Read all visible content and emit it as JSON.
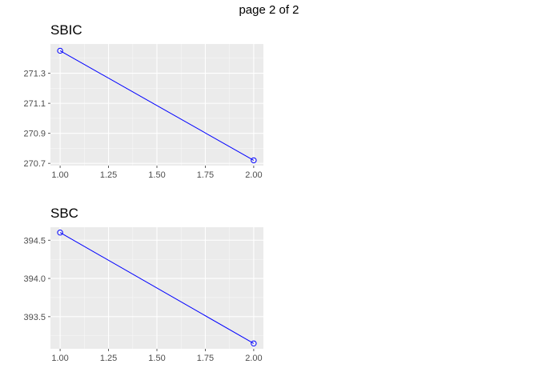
{
  "page_label": "page 2 of 2",
  "colors": {
    "panel_background": "#ebebeb",
    "grid_major": "#ffffff",
    "series_line": "#0000ff",
    "tick_text": "#4d4d4d"
  },
  "chart_data": [
    {
      "type": "line",
      "title": "SBIC",
      "xlabel": "",
      "ylabel": "",
      "x": [
        1,
        2
      ],
      "series": [
        {
          "values": [
            271.45,
            270.72
          ],
          "marker": "open-circle"
        }
      ],
      "xlim": [
        0.95,
        2.05
      ],
      "ylim": [
        270.685,
        271.495
      ],
      "x_ticks": [
        1.0,
        1.25,
        1.5,
        1.75,
        2.0
      ],
      "x_tick_labels": [
        "1.00",
        "1.25",
        "1.50",
        "1.75",
        "2.00"
      ],
      "y_ticks": [
        270.7,
        270.9,
        271.1,
        271.3
      ],
      "y_tick_labels": [
        "270.7",
        "270.9",
        "271.1",
        "271.3"
      ],
      "grid": true,
      "legend": "none"
    },
    {
      "type": "line",
      "title": "SBC",
      "xlabel": "",
      "ylabel": "",
      "x": [
        1,
        2
      ],
      "series": [
        {
          "values": [
            394.6,
            393.15
          ],
          "marker": "open-circle"
        }
      ],
      "xlim": [
        0.95,
        2.05
      ],
      "ylim": [
        393.08,
        394.67
      ],
      "x_ticks": [
        1.0,
        1.25,
        1.5,
        1.75,
        2.0
      ],
      "x_tick_labels": [
        "1.00",
        "1.25",
        "1.50",
        "1.75",
        "2.00"
      ],
      "y_ticks": [
        393.5,
        394.0,
        394.5
      ],
      "y_tick_labels": [
        "393.5",
        "394.0",
        "394.5"
      ],
      "grid": true,
      "legend": "none"
    }
  ]
}
